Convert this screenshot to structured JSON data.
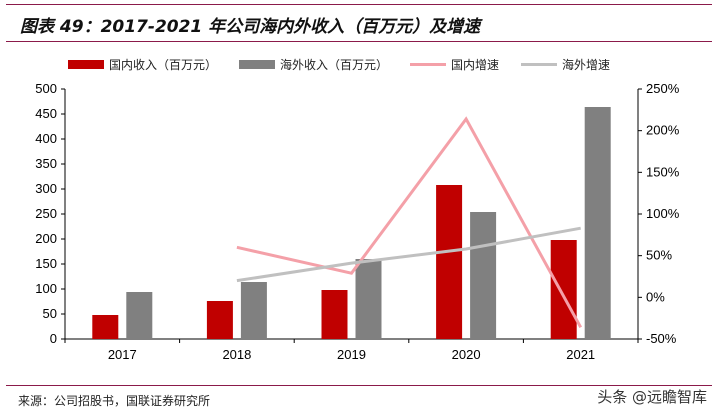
{
  "title": "图表 49：2017-2021 年公司海内外收入（百万元）及增速",
  "source": "来源：公司招股书，国联证券研究所",
  "watermark": "头条 @远瞻智库",
  "chart_data": {
    "type": "bar",
    "categories": [
      "2017",
      "2018",
      "2019",
      "2020",
      "2021"
    ],
    "series": [
      {
        "name": "国内收入（百万元）",
        "kind": "bar",
        "axis": "left",
        "color": "#c00000",
        "values": [
          48,
          76,
          98,
          308,
          198
        ]
      },
      {
        "name": "海外收入（百万元）",
        "kind": "bar",
        "axis": "left",
        "color": "#808080",
        "values": [
          94,
          114,
          160,
          254,
          464
        ]
      },
      {
        "name": "国内增速",
        "kind": "line",
        "axis": "right",
        "color": "#f4a0a8",
        "values": [
          null,
          60,
          29,
          214,
          -36
        ]
      },
      {
        "name": "海外增速",
        "kind": "line",
        "axis": "right",
        "color": "#c0c0c0",
        "values": [
          null,
          20,
          41,
          58,
          83
        ]
      }
    ],
    "ylim": [
      0,
      500
    ],
    "yticks": [
      0,
      50,
      100,
      150,
      200,
      250,
      300,
      350,
      400,
      450,
      500
    ],
    "y2lim": [
      -50,
      250
    ],
    "y2ticks": [
      "-50%",
      "0%",
      "50%",
      "100%",
      "150%",
      "200%",
      "250%"
    ],
    "legend": "top",
    "grid": false
  }
}
